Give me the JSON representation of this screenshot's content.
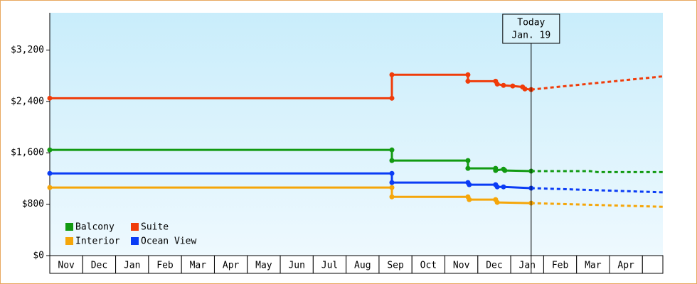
{
  "chart_data": {
    "type": "line",
    "step_markers": true,
    "categories": [
      "Nov",
      "Dec",
      "Jan",
      "Feb",
      "Mar",
      "Apr",
      "May",
      "Jun",
      "Jul",
      "Aug",
      "Sep",
      "Oct",
      "Nov",
      "Dec",
      "Jan",
      "Feb",
      "Mar",
      "Apr"
    ],
    "xlim": [
      0,
      18.62
    ],
    "ylim": [
      0,
      3780
    ],
    "yticks": [
      {
        "value": 0,
        "label": "$0"
      },
      {
        "value": 800,
        "label": "$800"
      },
      {
        "value": 1600,
        "label": "$1,600"
      },
      {
        "value": 2400,
        "label": "$2,400"
      },
      {
        "value": 3200,
        "label": "$3,200"
      }
    ],
    "legend": "lower left",
    "annotation": {
      "x": 14.62,
      "lines": [
        "Today",
        "Jan. 19"
      ]
    },
    "series": [
      {
        "name": "Balcony",
        "color": "#129a12",
        "x": [
          0,
          10.39,
          10.39,
          12.7,
          12.7,
          13.54,
          13.54,
          13.78,
          13.82,
          14.62
        ],
        "values": [
          1645,
          1645,
          1480,
          1480,
          1358,
          1358,
          1325,
          1345,
          1325,
          1315
        ],
        "forecast_x": [
          14.62,
          16.41,
          16.63,
          18.62
        ],
        "forecast_values": [
          1315,
          1315,
          1300,
          1300
        ]
      },
      {
        "name": "Suite",
        "color": "#f03c0a",
        "x": [
          0,
          10.39,
          10.39,
          12.7,
          12.7,
          13.54,
          13.59,
          13.78,
          14.06,
          14.36,
          14.43,
          14.62
        ],
        "values": [
          2450,
          2450,
          2815,
          2815,
          2715,
          2715,
          2670,
          2650,
          2640,
          2625,
          2595,
          2585
        ],
        "forecast_x": [
          14.62,
          18.62
        ],
        "forecast_values": [
          2585,
          2790
        ]
      },
      {
        "name": "Interior",
        "color": "#f5a60a",
        "x": [
          0,
          10.39,
          10.39,
          12.7,
          12.74,
          13.54,
          13.59,
          14.62
        ],
        "values": [
          1060,
          1060,
          915,
          915,
          872,
          872,
          828,
          817
        ],
        "forecast_x": [
          14.62,
          18.62
        ],
        "forecast_values": [
          817,
          760
        ]
      },
      {
        "name": "Ocean View",
        "color": "#0a3cf5",
        "x": [
          0,
          10.39,
          10.39,
          12.7,
          12.74,
          13.54,
          13.59,
          13.78,
          14.62
        ],
        "values": [
          1280,
          1280,
          1137,
          1137,
          1104,
          1104,
          1070,
          1070,
          1050
        ],
        "forecast_x": [
          14.62,
          16.52,
          18.62
        ],
        "forecast_values": [
          1050,
          1020,
          985
        ]
      }
    ]
  }
}
